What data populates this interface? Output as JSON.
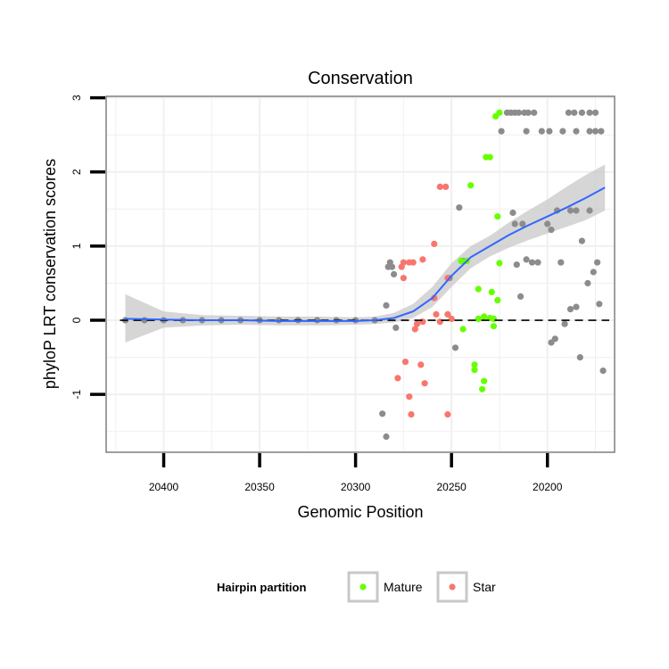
{
  "chart_data": {
    "type": "scatter",
    "title": "Conservation",
    "xlabel": "Genomic Position",
    "ylabel": "phyloP LRT conservation scores",
    "x_reversed": true,
    "xlim": [
      20430,
      20165
    ],
    "ylim": [
      -1.78,
      3.02
    ],
    "xticks": [
      20400,
      20350,
      20300,
      20250,
      20200
    ],
    "xtick_labels": [
      "20400",
      "20350",
      "20300",
      "20250",
      "20200"
    ],
    "yticks": [
      -1,
      0,
      1,
      2,
      3
    ],
    "ytick_labels": [
      "-1",
      "0",
      "1",
      "2",
      "3"
    ],
    "hline": 0,
    "colors": {
      "Mature": "#66ff00",
      "Star": "#f8766d",
      "Other": "#8c8c8c",
      "smooth": "#3366ff",
      "ribbon": "#c8c8c8",
      "grid": "#f0f0f0",
      "panel_border": "#7f7f7f"
    },
    "smooth_line": {
      "x": [
        20420,
        20400,
        20380,
        20360,
        20340,
        20320,
        20300,
        20290,
        20280,
        20270,
        20260,
        20250,
        20240,
        20230,
        20220,
        20210,
        20200,
        20190,
        20180,
        20170
      ],
      "y": [
        0.02,
        0.01,
        0.0,
        0.0,
        -0.01,
        -0.01,
        -0.01,
        0.0,
        0.03,
        0.12,
        0.3,
        0.6,
        0.85,
        1.0,
        1.15,
        1.28,
        1.4,
        1.52,
        1.65,
        1.79
      ],
      "lower": [
        -0.3,
        -0.1,
        -0.07,
        -0.06,
        -0.07,
        -0.07,
        -0.06,
        -0.05,
        -0.03,
        0.03,
        0.18,
        0.45,
        0.7,
        0.86,
        0.98,
        1.08,
        1.17,
        1.26,
        1.35,
        1.48
      ],
      "upper": [
        0.35,
        0.12,
        0.07,
        0.06,
        0.05,
        0.05,
        0.04,
        0.05,
        0.1,
        0.22,
        0.45,
        0.77,
        1.0,
        1.14,
        1.32,
        1.48,
        1.63,
        1.8,
        1.96,
        2.1
      ]
    },
    "series": [
      {
        "name": "Other",
        "points": [
          [
            20420,
            0.0
          ],
          [
            20410,
            0.0
          ],
          [
            20400,
            0.0
          ],
          [
            20390,
            0.0
          ],
          [
            20380,
            0.0
          ],
          [
            20370,
            0.0
          ],
          [
            20360,
            0.0
          ],
          [
            20350,
            0.0
          ],
          [
            20340,
            0.0
          ],
          [
            20330,
            0.0
          ],
          [
            20320,
            0.0
          ],
          [
            20310,
            0.0
          ],
          [
            20300,
            0.0
          ],
          [
            20290,
            0.0
          ],
          [
            20284,
            -1.57
          ],
          [
            20286,
            -1.26
          ],
          [
            20284,
            0.2
          ],
          [
            20283,
            0.72
          ],
          [
            20282,
            0.78
          ],
          [
            20281,
            0.72
          ],
          [
            20280,
            0.62
          ],
          [
            20279,
            -0.1
          ],
          [
            20251,
            0.57
          ],
          [
            20248,
            -0.37
          ],
          [
            20246,
            1.52
          ],
          [
            20244,
            0.8
          ],
          [
            20221,
            2.8
          ],
          [
            20219,
            2.8
          ],
          [
            20217,
            2.8
          ],
          [
            20215,
            2.8
          ],
          [
            20212,
            2.8
          ],
          [
            20210,
            2.8
          ],
          [
            20207,
            2.8
          ],
          [
            20224,
            2.55
          ],
          [
            20211,
            2.55
          ],
          [
            20203,
            2.55
          ],
          [
            20199,
            2.55
          ],
          [
            20192,
            2.55
          ],
          [
            20185,
            2.55
          ],
          [
            20178,
            2.55
          ],
          [
            20175,
            2.55
          ],
          [
            20172,
            2.55
          ],
          [
            20189,
            2.8
          ],
          [
            20186,
            2.8
          ],
          [
            20182,
            2.8
          ],
          [
            20178,
            2.8
          ],
          [
            20175,
            2.8
          ],
          [
            20218,
            1.45
          ],
          [
            20217,
            1.3
          ],
          [
            20213,
            1.3
          ],
          [
            20211,
            0.82
          ],
          [
            20208,
            0.78
          ],
          [
            20205,
            0.78
          ],
          [
            20200,
            1.3
          ],
          [
            20198,
            1.22
          ],
          [
            20195,
            1.48
          ],
          [
            20193,
            0.78
          ],
          [
            20188,
            1.48
          ],
          [
            20185,
            1.48
          ],
          [
            20182,
            1.07
          ],
          [
            20178,
            1.48
          ],
          [
            20216,
            0.75
          ],
          [
            20214,
            0.32
          ],
          [
            20198,
            -0.3
          ],
          [
            20196,
            -0.25
          ],
          [
            20191,
            -0.05
          ],
          [
            20188,
            0.15
          ],
          [
            20185,
            0.18
          ],
          [
            20183,
            -0.5
          ],
          [
            20179,
            0.5
          ],
          [
            20176,
            0.65
          ],
          [
            20174,
            0.78
          ],
          [
            20173,
            0.22
          ],
          [
            20171,
            -0.68
          ]
        ]
      },
      {
        "name": "Mature",
        "points": [
          [
            20227,
            2.75
          ],
          [
            20225,
            2.8
          ],
          [
            20232,
            2.2
          ],
          [
            20230,
            2.2
          ],
          [
            20240,
            1.82
          ],
          [
            20226,
            1.4
          ],
          [
            20245,
            0.8
          ],
          [
            20242,
            0.8
          ],
          [
            20225,
            0.77
          ],
          [
            20236,
            0.42
          ],
          [
            20229,
            0.38
          ],
          [
            20226,
            0.27
          ],
          [
            20236,
            0.02
          ],
          [
            20233,
            0.05
          ],
          [
            20230,
            0.03
          ],
          [
            20228,
            0.02
          ],
          [
            20228,
            -0.08
          ],
          [
            20244,
            -0.12
          ],
          [
            20238,
            -0.6
          ],
          [
            20238,
            -0.67
          ],
          [
            20233,
            -0.82
          ],
          [
            20234,
            -0.93
          ]
        ]
      },
      {
        "name": "Star",
        "points": [
          [
            20256,
            1.8
          ],
          [
            20253,
            1.8
          ],
          [
            20259,
            1.03
          ],
          [
            20265,
            0.82
          ],
          [
            20270,
            0.78
          ],
          [
            20272,
            0.78
          ],
          [
            20275,
            0.78
          ],
          [
            20276,
            0.72
          ],
          [
            20275,
            0.57
          ],
          [
            20252,
            0.57
          ],
          [
            20259,
            0.3
          ],
          [
            20258,
            0.08
          ],
          [
            20252,
            0.08
          ],
          [
            20250,
            0.02
          ],
          [
            20256,
            -0.02
          ],
          [
            20265,
            -0.02
          ],
          [
            20268,
            -0.05
          ],
          [
            20269,
            -0.12
          ],
          [
            20274,
            -0.56
          ],
          [
            20266,
            -0.6
          ],
          [
            20278,
            -0.78
          ],
          [
            20264,
            -0.85
          ],
          [
            20272,
            -1.03
          ],
          [
            20271,
            -1.27
          ],
          [
            20252,
            -1.27
          ]
        ]
      }
    ],
    "legend": {
      "title": "Hairpin partition",
      "position": "bottom",
      "entries": [
        {
          "label": "Mature",
          "color": "#66ff00"
        },
        {
          "label": "Star",
          "color": "#f8766d"
        }
      ]
    }
  }
}
